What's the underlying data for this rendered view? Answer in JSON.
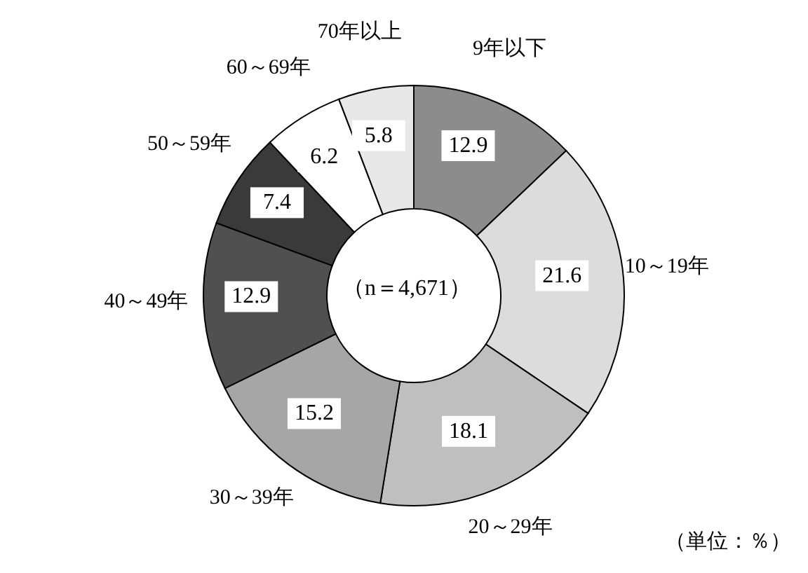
{
  "chart_data": {
    "type": "donut",
    "categories": [
      "9年以下",
      "10～19年",
      "20～29年",
      "30～39年",
      "40～49年",
      "50～59年",
      "60～69年",
      "70年以上"
    ],
    "values": [
      12.9,
      21.6,
      18.1,
      15.2,
      12.9,
      7.4,
      6.2,
      5.8
    ],
    "colors": [
      "#8c8c8c",
      "#dcdcdc",
      "#bfbfbf",
      "#a6a6a6",
      "#505050",
      "#3a3a3a",
      "#ffffff",
      "#e8e8e8"
    ],
    "data_labels": true,
    "annotations": [
      "（n＝4,671）",
      "（単位：％）"
    ]
  }
}
